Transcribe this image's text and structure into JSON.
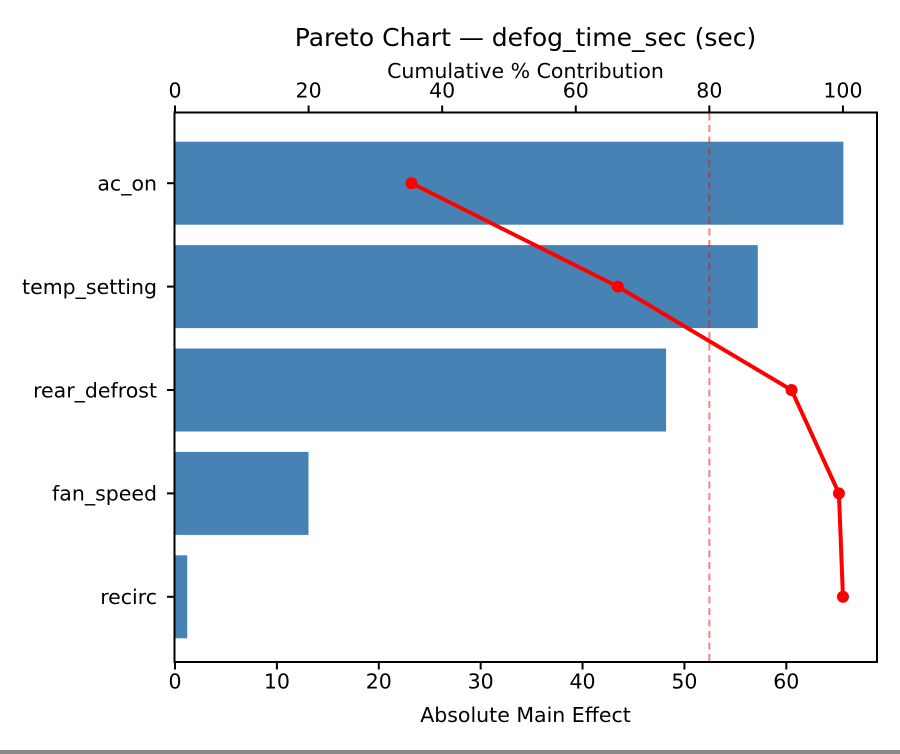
{
  "figure": {
    "background": "#ffffff",
    "text_color": "#000000"
  },
  "chart_data": {
    "type": "bar",
    "subtype": "pareto-horizontal-bar-with-cumulative-line",
    "title": "Pareto Chart — defog_time_sec (sec)",
    "categories": [
      "ac_on",
      "temp_setting",
      "rear_defrost",
      "fan_speed",
      "recirc"
    ],
    "series": [
      {
        "name": "Absolute Main Effect",
        "type": "bar",
        "orientation": "horizontal",
        "values": [
          65.6,
          57.2,
          48.2,
          13.1,
          1.2
        ],
        "color": "#4682B4"
      },
      {
        "name": "Cumulative % Contribution",
        "type": "line",
        "marker": "circle",
        "values": [
          35.4,
          66.3,
          92.3,
          99.4,
          100.0
        ],
        "color": "#ff0000"
      }
    ],
    "bottom_axis": {
      "label": "Absolute Main Effect",
      "ticks": [
        0,
        10,
        20,
        30,
        40,
        50,
        60
      ],
      "lim": [
        0,
        68.9
      ]
    },
    "top_axis": {
      "label": "Cumulative % Contribution",
      "ticks": [
        0,
        20,
        40,
        60,
        80,
        100
      ],
      "lim": [
        0,
        105.1
      ]
    },
    "threshold_line": {
      "value": 80,
      "axis": "top",
      "style": "dashed",
      "color": "#ff0000",
      "opacity": 0.5
    },
    "grid": false,
    "legend_position": "none"
  }
}
